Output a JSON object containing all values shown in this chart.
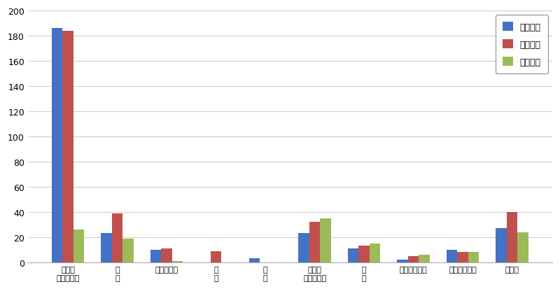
{
  "categories": [
    "就職・\n転職・転業",
    "転\n勤",
    "退職・廃業",
    "就\n学",
    "卒\n業",
    "結婚・\n離婚・縁組",
    "住\n宅",
    "交通の利便性",
    "生活の利便性",
    "その他"
  ],
  "series": [
    {
      "label": "県外転入",
      "color": "#4472c4",
      "values": [
        186,
        23,
        10,
        0,
        3,
        23,
        11,
        2,
        10,
        27
      ]
    },
    {
      "label": "県外転出",
      "color": "#c0504d",
      "values": [
        184,
        39,
        11,
        9,
        0,
        32,
        13,
        5,
        8,
        40
      ]
    },
    {
      "label": "県内移動",
      "color": "#9bbb59",
      "values": [
        26,
        19,
        1,
        0,
        0,
        35,
        15,
        6,
        8,
        24
      ]
    }
  ],
  "ylim": [
    0,
    200
  ],
  "yticks": [
    0,
    20,
    40,
    60,
    80,
    100,
    120,
    140,
    160,
    180,
    200
  ],
  "legend_loc": "upper right",
  "background_color": "#ffffff",
  "grid_color": "#d0d0d0",
  "bar_width": 0.22
}
